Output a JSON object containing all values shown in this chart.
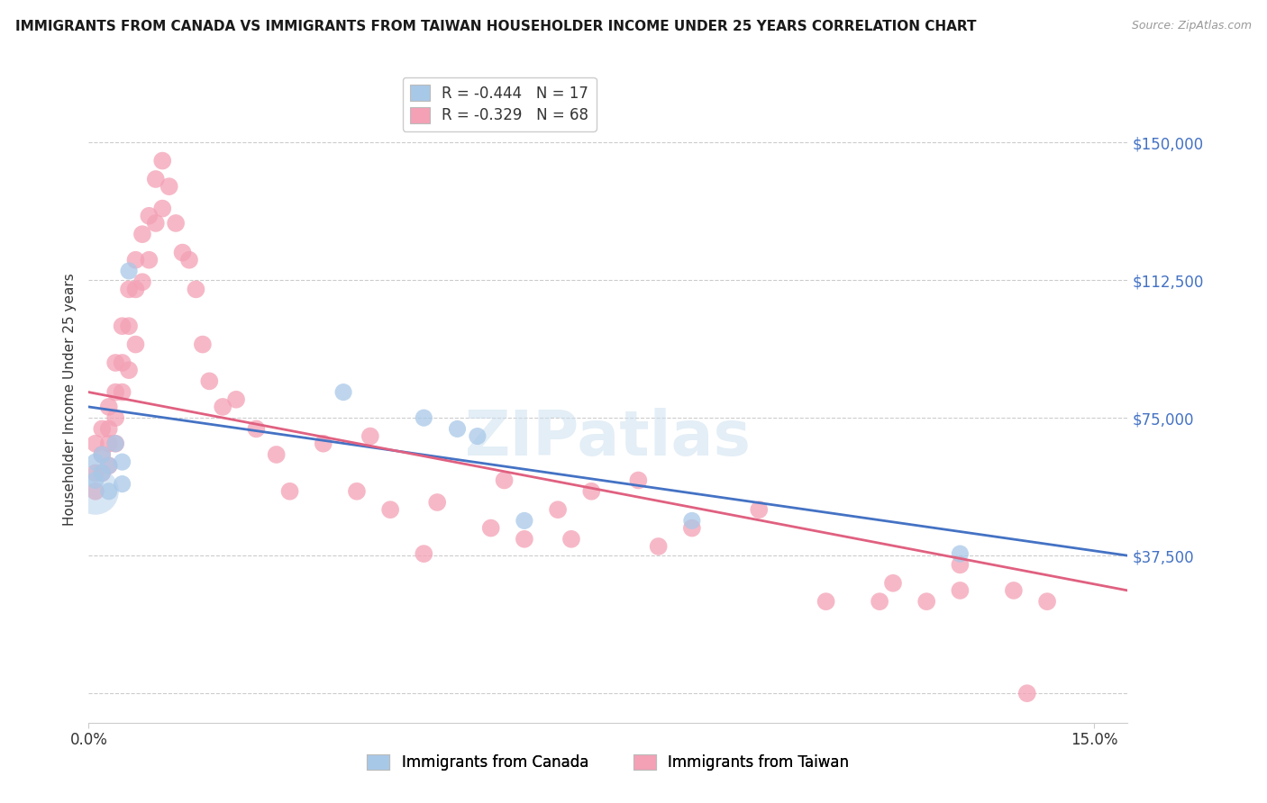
{
  "title": "IMMIGRANTS FROM CANADA VS IMMIGRANTS FROM TAIWAN HOUSEHOLDER INCOME UNDER 25 YEARS CORRELATION CHART",
  "source": "Source: ZipAtlas.com",
  "ylabel": "Householder Income Under 25 years",
  "ytick_labels": [
    "$37,500",
    "$75,000",
    "$112,500",
    "$150,000"
  ],
  "ytick_values": [
    37500,
    75000,
    112500,
    150000
  ],
  "ylim": [
    -8000,
    168000
  ],
  "xlim": [
    0.0,
    0.155
  ],
  "legend_canada_r": "R = -0.444",
  "legend_canada_n": "N = 17",
  "legend_taiwan_r": "R = -0.329",
  "legend_taiwan_n": "N = 68",
  "canada_color": "#a8c8e8",
  "taiwan_color": "#f4a0b5",
  "canada_line_color": "#4472c4",
  "taiwan_line_color": "#e06080",
  "axis_label_color": "#4472c4",
  "text_color": "#333333",
  "grid_color": "#cccccc",
  "canada_label": "Immigrants from Canada",
  "taiwan_label": "Immigrants from Taiwan",
  "canada_x": [
    0.001,
    0.001,
    0.002,
    0.002,
    0.003,
    0.003,
    0.004,
    0.005,
    0.005,
    0.006,
    0.038,
    0.05,
    0.055,
    0.058,
    0.065,
    0.09,
    0.13
  ],
  "canada_y": [
    63000,
    58000,
    65000,
    60000,
    62000,
    55000,
    68000,
    63000,
    57000,
    115000,
    82000,
    75000,
    72000,
    70000,
    47000,
    47000,
    38000
  ],
  "canada_sizes": [
    180,
    180,
    180,
    180,
    180,
    180,
    180,
    180,
    180,
    180,
    180,
    180,
    180,
    180,
    180,
    180,
    180
  ],
  "canada_big_x": [
    0.001
  ],
  "canada_big_y": [
    55000
  ],
  "canada_big_size": 1400,
  "taiwan_x": [
    0.001,
    0.001,
    0.001,
    0.002,
    0.002,
    0.002,
    0.003,
    0.003,
    0.003,
    0.003,
    0.004,
    0.004,
    0.004,
    0.004,
    0.005,
    0.005,
    0.005,
    0.006,
    0.006,
    0.006,
    0.007,
    0.007,
    0.007,
    0.008,
    0.008,
    0.009,
    0.009,
    0.01,
    0.01,
    0.011,
    0.011,
    0.012,
    0.013,
    0.014,
    0.015,
    0.016,
    0.017,
    0.018,
    0.02,
    0.022,
    0.025,
    0.028,
    0.03,
    0.035,
    0.04,
    0.042,
    0.045,
    0.05,
    0.052,
    0.06,
    0.062,
    0.065,
    0.07,
    0.072,
    0.075,
    0.082,
    0.085,
    0.09,
    0.1,
    0.11,
    0.118,
    0.12,
    0.125,
    0.13,
    0.13,
    0.138,
    0.14,
    0.143
  ],
  "taiwan_y": [
    68000,
    60000,
    55000,
    72000,
    65000,
    60000,
    78000,
    72000,
    68000,
    62000,
    90000,
    82000,
    75000,
    68000,
    100000,
    90000,
    82000,
    110000,
    100000,
    88000,
    118000,
    110000,
    95000,
    125000,
    112000,
    130000,
    118000,
    140000,
    128000,
    145000,
    132000,
    138000,
    128000,
    120000,
    118000,
    110000,
    95000,
    85000,
    78000,
    80000,
    72000,
    65000,
    55000,
    68000,
    55000,
    70000,
    50000,
    38000,
    52000,
    45000,
    58000,
    42000,
    50000,
    42000,
    55000,
    58000,
    40000,
    45000,
    50000,
    25000,
    25000,
    30000,
    25000,
    28000,
    35000,
    28000,
    0,
    25000
  ],
  "taiwan_sizes": [
    180,
    180,
    180,
    180,
    180,
    180,
    180,
    180,
    180,
    180,
    180,
    180,
    180,
    180,
    180,
    180,
    180,
    180,
    180,
    180,
    180,
    180,
    180,
    180,
    180,
    180,
    180,
    180,
    180,
    180,
    180,
    180,
    180,
    180,
    180,
    180,
    180,
    180,
    180,
    180,
    180,
    180,
    180,
    180,
    180,
    180,
    180,
    180,
    180,
    180,
    180,
    180,
    180,
    180,
    180,
    180,
    180,
    180,
    180,
    180,
    180,
    180,
    180,
    180,
    180,
    180,
    180,
    180
  ]
}
